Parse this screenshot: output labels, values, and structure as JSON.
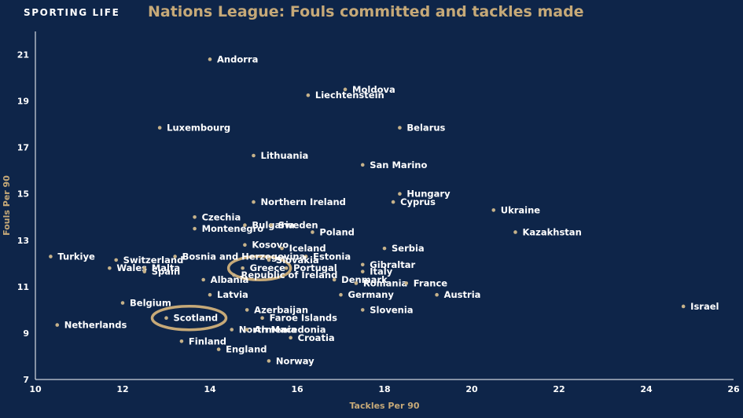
{
  "header": {
    "brand": "SPORTING LIFE",
    "title": "Nations League: Fouls committed and tackles made"
  },
  "colors": {
    "background": "#0e2549",
    "accent": "#c6a978",
    "point": "#c6b28a",
    "text": "#ffffff"
  },
  "chart_data": {
    "type": "scatter",
    "title": "Nations League: Fouls committed and tackles made",
    "xlabel": "Tackles Per 90",
    "ylabel": "Fouls Per 90",
    "xlim": [
      10,
      26
    ],
    "ylim": [
      7,
      22
    ],
    "xticks": [
      10,
      12,
      14,
      16,
      18,
      20,
      22,
      24,
      26
    ],
    "yticks": [
      7,
      9,
      11,
      13,
      15,
      17,
      19,
      21
    ],
    "grid": false,
    "highlighted": [
      "Scotland",
      "Greece"
    ],
    "points": [
      {
        "label": "Andorra",
        "x": 14.0,
        "y": 20.8
      },
      {
        "label": "Moldova",
        "x": 17.1,
        "y": 19.5
      },
      {
        "label": "Liechtenstein",
        "x": 16.25,
        "y": 19.25
      },
      {
        "label": "Luxembourg",
        "x": 12.85,
        "y": 17.85
      },
      {
        "label": "Belarus",
        "x": 18.35,
        "y": 17.85
      },
      {
        "label": "Lithuania",
        "x": 15.0,
        "y": 16.65
      },
      {
        "label": "San Marino",
        "x": 17.5,
        "y": 16.25
      },
      {
        "label": "Hungary",
        "x": 18.35,
        "y": 15.0
      },
      {
        "label": "Northern Ireland",
        "x": 15.0,
        "y": 14.65
      },
      {
        "label": "Cyprus",
        "x": 18.2,
        "y": 14.65
      },
      {
        "label": "Ukraine",
        "x": 20.5,
        "y": 14.3
      },
      {
        "label": "Czechia",
        "x": 13.65,
        "y": 14.0
      },
      {
        "label": "Bulgaria",
        "x": 14.8,
        "y": 13.65
      },
      {
        "label": "Sweden",
        "x": 15.4,
        "y": 13.65
      },
      {
        "label": "Montenegro",
        "x": 13.65,
        "y": 13.5
      },
      {
        "label": "Poland",
        "x": 16.35,
        "y": 13.35
      },
      {
        "label": "Kazakhstan",
        "x": 21.0,
        "y": 13.35
      },
      {
        "label": "Kosovo",
        "x": 14.8,
        "y": 12.8
      },
      {
        "label": "Iceland",
        "x": 15.65,
        "y": 12.65
      },
      {
        "label": "Serbia",
        "x": 18.0,
        "y": 12.65
      },
      {
        "label": "Turkiye",
        "x": 10.35,
        "y": 12.3
      },
      {
        "label": "Bosnia and Herzegovina",
        "x": 13.2,
        "y": 12.3
      },
      {
        "label": "Estonia",
        "x": 16.2,
        "y": 12.3
      },
      {
        "label": "Switzerland",
        "x": 11.85,
        "y": 12.15
      },
      {
        "label": "Slovakia",
        "x": 15.35,
        "y": 12.15
      },
      {
        "label": "Gibraltar",
        "x": 17.5,
        "y": 11.95
      },
      {
        "label": "Wales",
        "x": 11.7,
        "y": 11.8
      },
      {
        "label": "Malta",
        "x": 12.5,
        "y": 11.8
      },
      {
        "label": "Greece",
        "x": 14.75,
        "y": 11.8
      },
      {
        "label": "Portugal",
        "x": 15.75,
        "y": 11.8
      },
      {
        "label": "Spain",
        "x": 12.5,
        "y": 11.65
      },
      {
        "label": "Italy",
        "x": 17.5,
        "y": 11.65
      },
      {
        "label": "Republic of Ireland",
        "x": 14.55,
        "y": 11.5
      },
      {
        "label": "Denmark",
        "x": 16.85,
        "y": 11.3
      },
      {
        "label": "Albania",
        "x": 13.85,
        "y": 11.3
      },
      {
        "label": "Romania",
        "x": 17.35,
        "y": 11.15
      },
      {
        "label": "France",
        "x": 18.5,
        "y": 11.15
      },
      {
        "label": "Latvia",
        "x": 14.0,
        "y": 10.65
      },
      {
        "label": "Germany",
        "x": 17.0,
        "y": 10.65
      },
      {
        "label": "Austria",
        "x": 19.2,
        "y": 10.65
      },
      {
        "label": "Belgium",
        "x": 12.0,
        "y": 10.3
      },
      {
        "label": "Israel",
        "x": 24.85,
        "y": 10.15
      },
      {
        "label": "Azerbaijan",
        "x": 14.85,
        "y": 10.0
      },
      {
        "label": "Slovenia",
        "x": 17.5,
        "y": 10.0
      },
      {
        "label": "Faroe Islands",
        "x": 15.2,
        "y": 9.65
      },
      {
        "label": "Scotland",
        "x": 13.0,
        "y": 9.65
      },
      {
        "label": "Netherlands",
        "x": 10.5,
        "y": 9.35
      },
      {
        "label": "North Macedonia",
        "x": 14.5,
        "y": 9.15
      },
      {
        "label": "Armenia",
        "x": 14.85,
        "y": 9.15
      },
      {
        "label": "Croatia",
        "x": 15.85,
        "y": 8.8
      },
      {
        "label": "Finland",
        "x": 13.35,
        "y": 8.65
      },
      {
        "label": "England",
        "x": 14.2,
        "y": 8.3
      },
      {
        "label": "Norway",
        "x": 15.35,
        "y": 7.8
      }
    ]
  }
}
